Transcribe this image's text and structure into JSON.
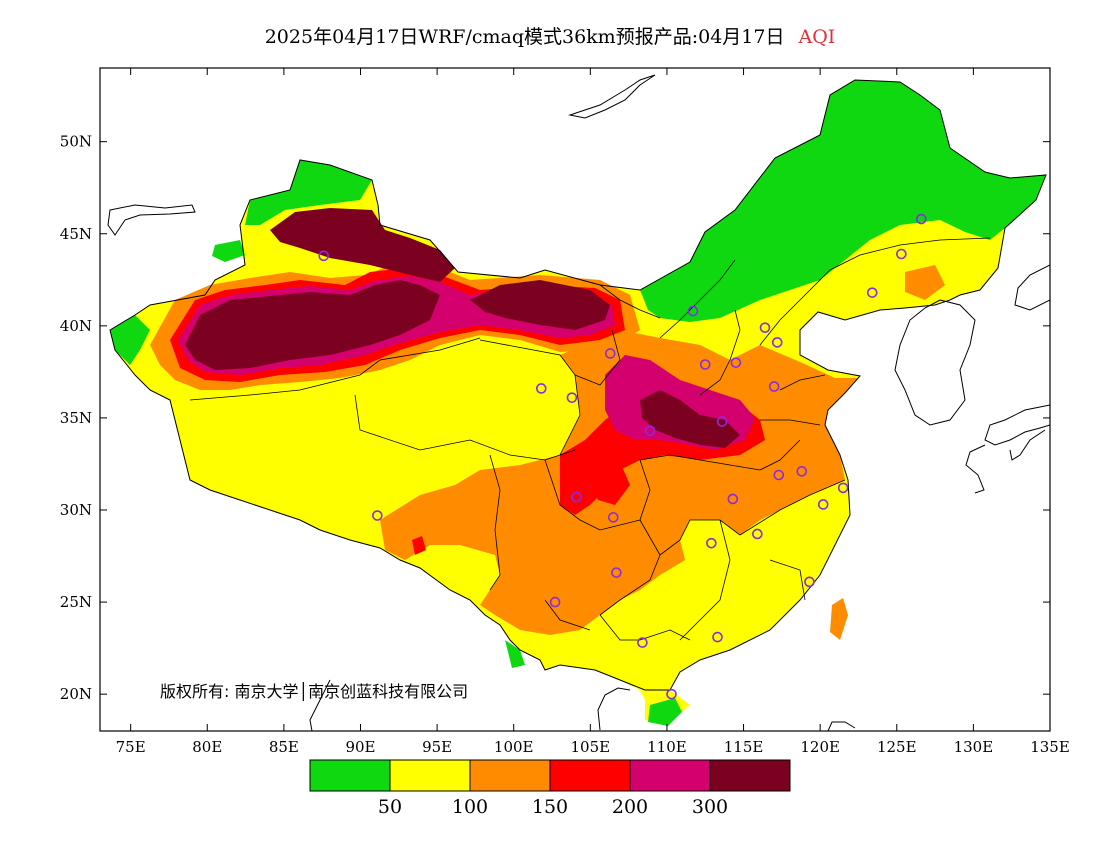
{
  "title": {
    "main": "2025年04月17日WRF/cmaq模式36km预报产品:04月17日",
    "variable": "AQI"
  },
  "axes": {
    "lat_ticks": [
      {
        "label": "50N",
        "value": 50
      },
      {
        "label": "45N",
        "value": 45
      },
      {
        "label": "40N",
        "value": 40
      },
      {
        "label": "35N",
        "value": 35
      },
      {
        "label": "30N",
        "value": 30
      },
      {
        "label": "25N",
        "value": 25
      },
      {
        "label": "20N",
        "value": 20
      }
    ],
    "lon_ticks": [
      {
        "label": "75E",
        "value": 75
      },
      {
        "label": "80E",
        "value": 80
      },
      {
        "label": "85E",
        "value": 85
      },
      {
        "label": "90E",
        "value": 90
      },
      {
        "label": "95E",
        "value": 95
      },
      {
        "label": "100E",
        "value": 100
      },
      {
        "label": "105E",
        "value": 105
      },
      {
        "label": "110E",
        "value": 110
      },
      {
        "label": "115E",
        "value": 115
      },
      {
        "label": "120E",
        "value": 120
      },
      {
        "label": "125E",
        "value": 125
      },
      {
        "label": "130E",
        "value": 130
      },
      {
        "label": "135E",
        "value": 135
      }
    ],
    "lon_range": [
      73,
      135
    ],
    "lat_range": [
      18,
      54
    ]
  },
  "credit": "版权所有: 南京大学│南京创蓝科技有限公司",
  "colorbar": {
    "colors": [
      "#10d810",
      "#ffff00",
      "#ff8c00",
      "#ff0000",
      "#d4006e",
      "#7c0020"
    ],
    "labels": [
      "50",
      "100",
      "150",
      "200",
      "300"
    ]
  },
  "stations": [
    {
      "lon": 87.6,
      "lat": 43.8
    },
    {
      "lon": 91.1,
      "lat": 29.7
    },
    {
      "lon": 101.8,
      "lat": 36.6
    },
    {
      "lon": 103.8,
      "lat": 36.1
    },
    {
      "lon": 104.1,
      "lat": 30.7
    },
    {
      "lon": 106.5,
      "lat": 29.6
    },
    {
      "lon": 106.7,
      "lat": 26.6
    },
    {
      "lon": 102.7,
      "lat": 25.0
    },
    {
      "lon": 108.4,
      "lat": 22.8
    },
    {
      "lon": 110.3,
      "lat": 20.0
    },
    {
      "lon": 113.3,
      "lat": 23.1
    },
    {
      "lon": 112.9,
      "lat": 28.2
    },
    {
      "lon": 114.3,
      "lat": 30.6
    },
    {
      "lon": 115.9,
      "lat": 28.7
    },
    {
      "lon": 119.3,
      "lat": 26.1
    },
    {
      "lon": 120.2,
      "lat": 30.3
    },
    {
      "lon": 118.8,
      "lat": 32.1
    },
    {
      "lon": 121.5,
      "lat": 31.2
    },
    {
      "lon": 117.3,
      "lat": 31.9
    },
    {
      "lon": 113.6,
      "lat": 34.8
    },
    {
      "lon": 108.9,
      "lat": 34.3
    },
    {
      "lon": 106.3,
      "lat": 38.5
    },
    {
      "lon": 111.7,
      "lat": 40.8
    },
    {
      "lon": 112.5,
      "lat": 37.9
    },
    {
      "lon": 114.5,
      "lat": 38.0
    },
    {
      "lon": 116.4,
      "lat": 39.9
    },
    {
      "lon": 117.2,
      "lat": 39.1
    },
    {
      "lon": 117.0,
      "lat": 36.7
    },
    {
      "lon": 123.4,
      "lat": 41.8
    },
    {
      "lon": 125.3,
      "lat": 43.9
    },
    {
      "lon": 126.6,
      "lat": 45.8
    }
  ]
}
